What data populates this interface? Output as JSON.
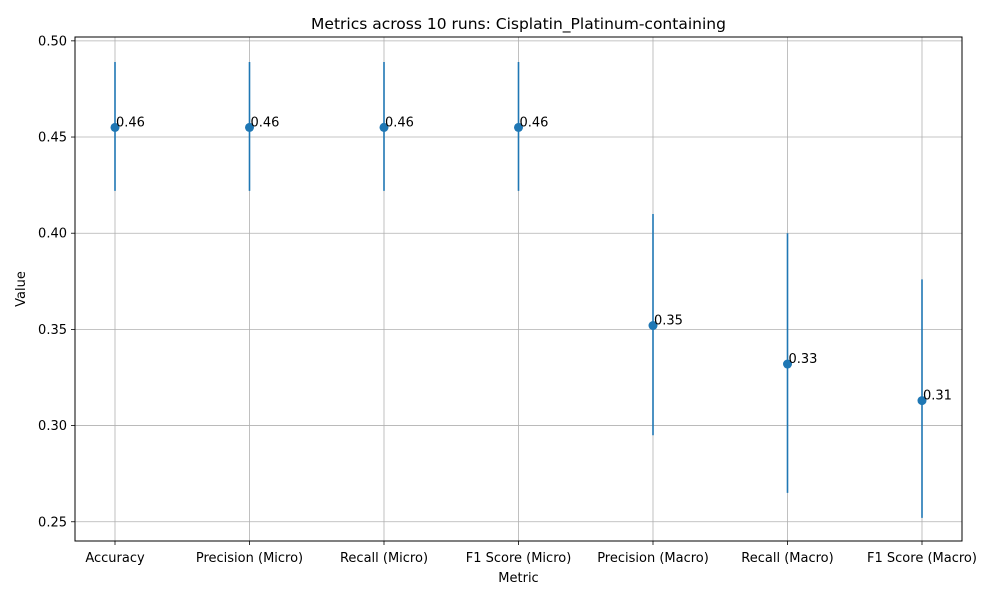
{
  "chart_data": {
    "type": "scatter",
    "title": "Metrics across 10 runs: Cisplatin_Platinum-containing",
    "xlabel": "Metric",
    "ylabel": "Value",
    "categories": [
      "Accuracy",
      "Precision (Micro)",
      "Recall (Micro)",
      "F1 Score (Micro)",
      "Precision (Macro)",
      "Recall (Macro)",
      "F1 Score (Macro)"
    ],
    "series": [
      {
        "values": [
          0.455,
          0.455,
          0.455,
          0.455,
          0.352,
          0.332,
          0.313
        ],
        "error_low": [
          0.422,
          0.422,
          0.422,
          0.422,
          0.295,
          0.265,
          0.252
        ],
        "error_high": [
          0.489,
          0.489,
          0.489,
          0.489,
          0.41,
          0.4,
          0.376
        ],
        "labels": [
          "0.46",
          "0.46",
          "0.46",
          "0.46",
          "0.35",
          "0.33",
          "0.31"
        ]
      }
    ],
    "ylim": [
      0.24,
      0.502
    ],
    "yticks": [
      0.25,
      0.3,
      0.35,
      0.4,
      0.45,
      0.5
    ],
    "ytick_labels": [
      "0.25",
      "0.30",
      "0.35",
      "0.40",
      "0.45",
      "0.50"
    ],
    "grid": true,
    "legend": "none",
    "colors": {
      "series": "#1f77b4",
      "grid": "#b0b0b0",
      "axes": "#000000"
    }
  }
}
